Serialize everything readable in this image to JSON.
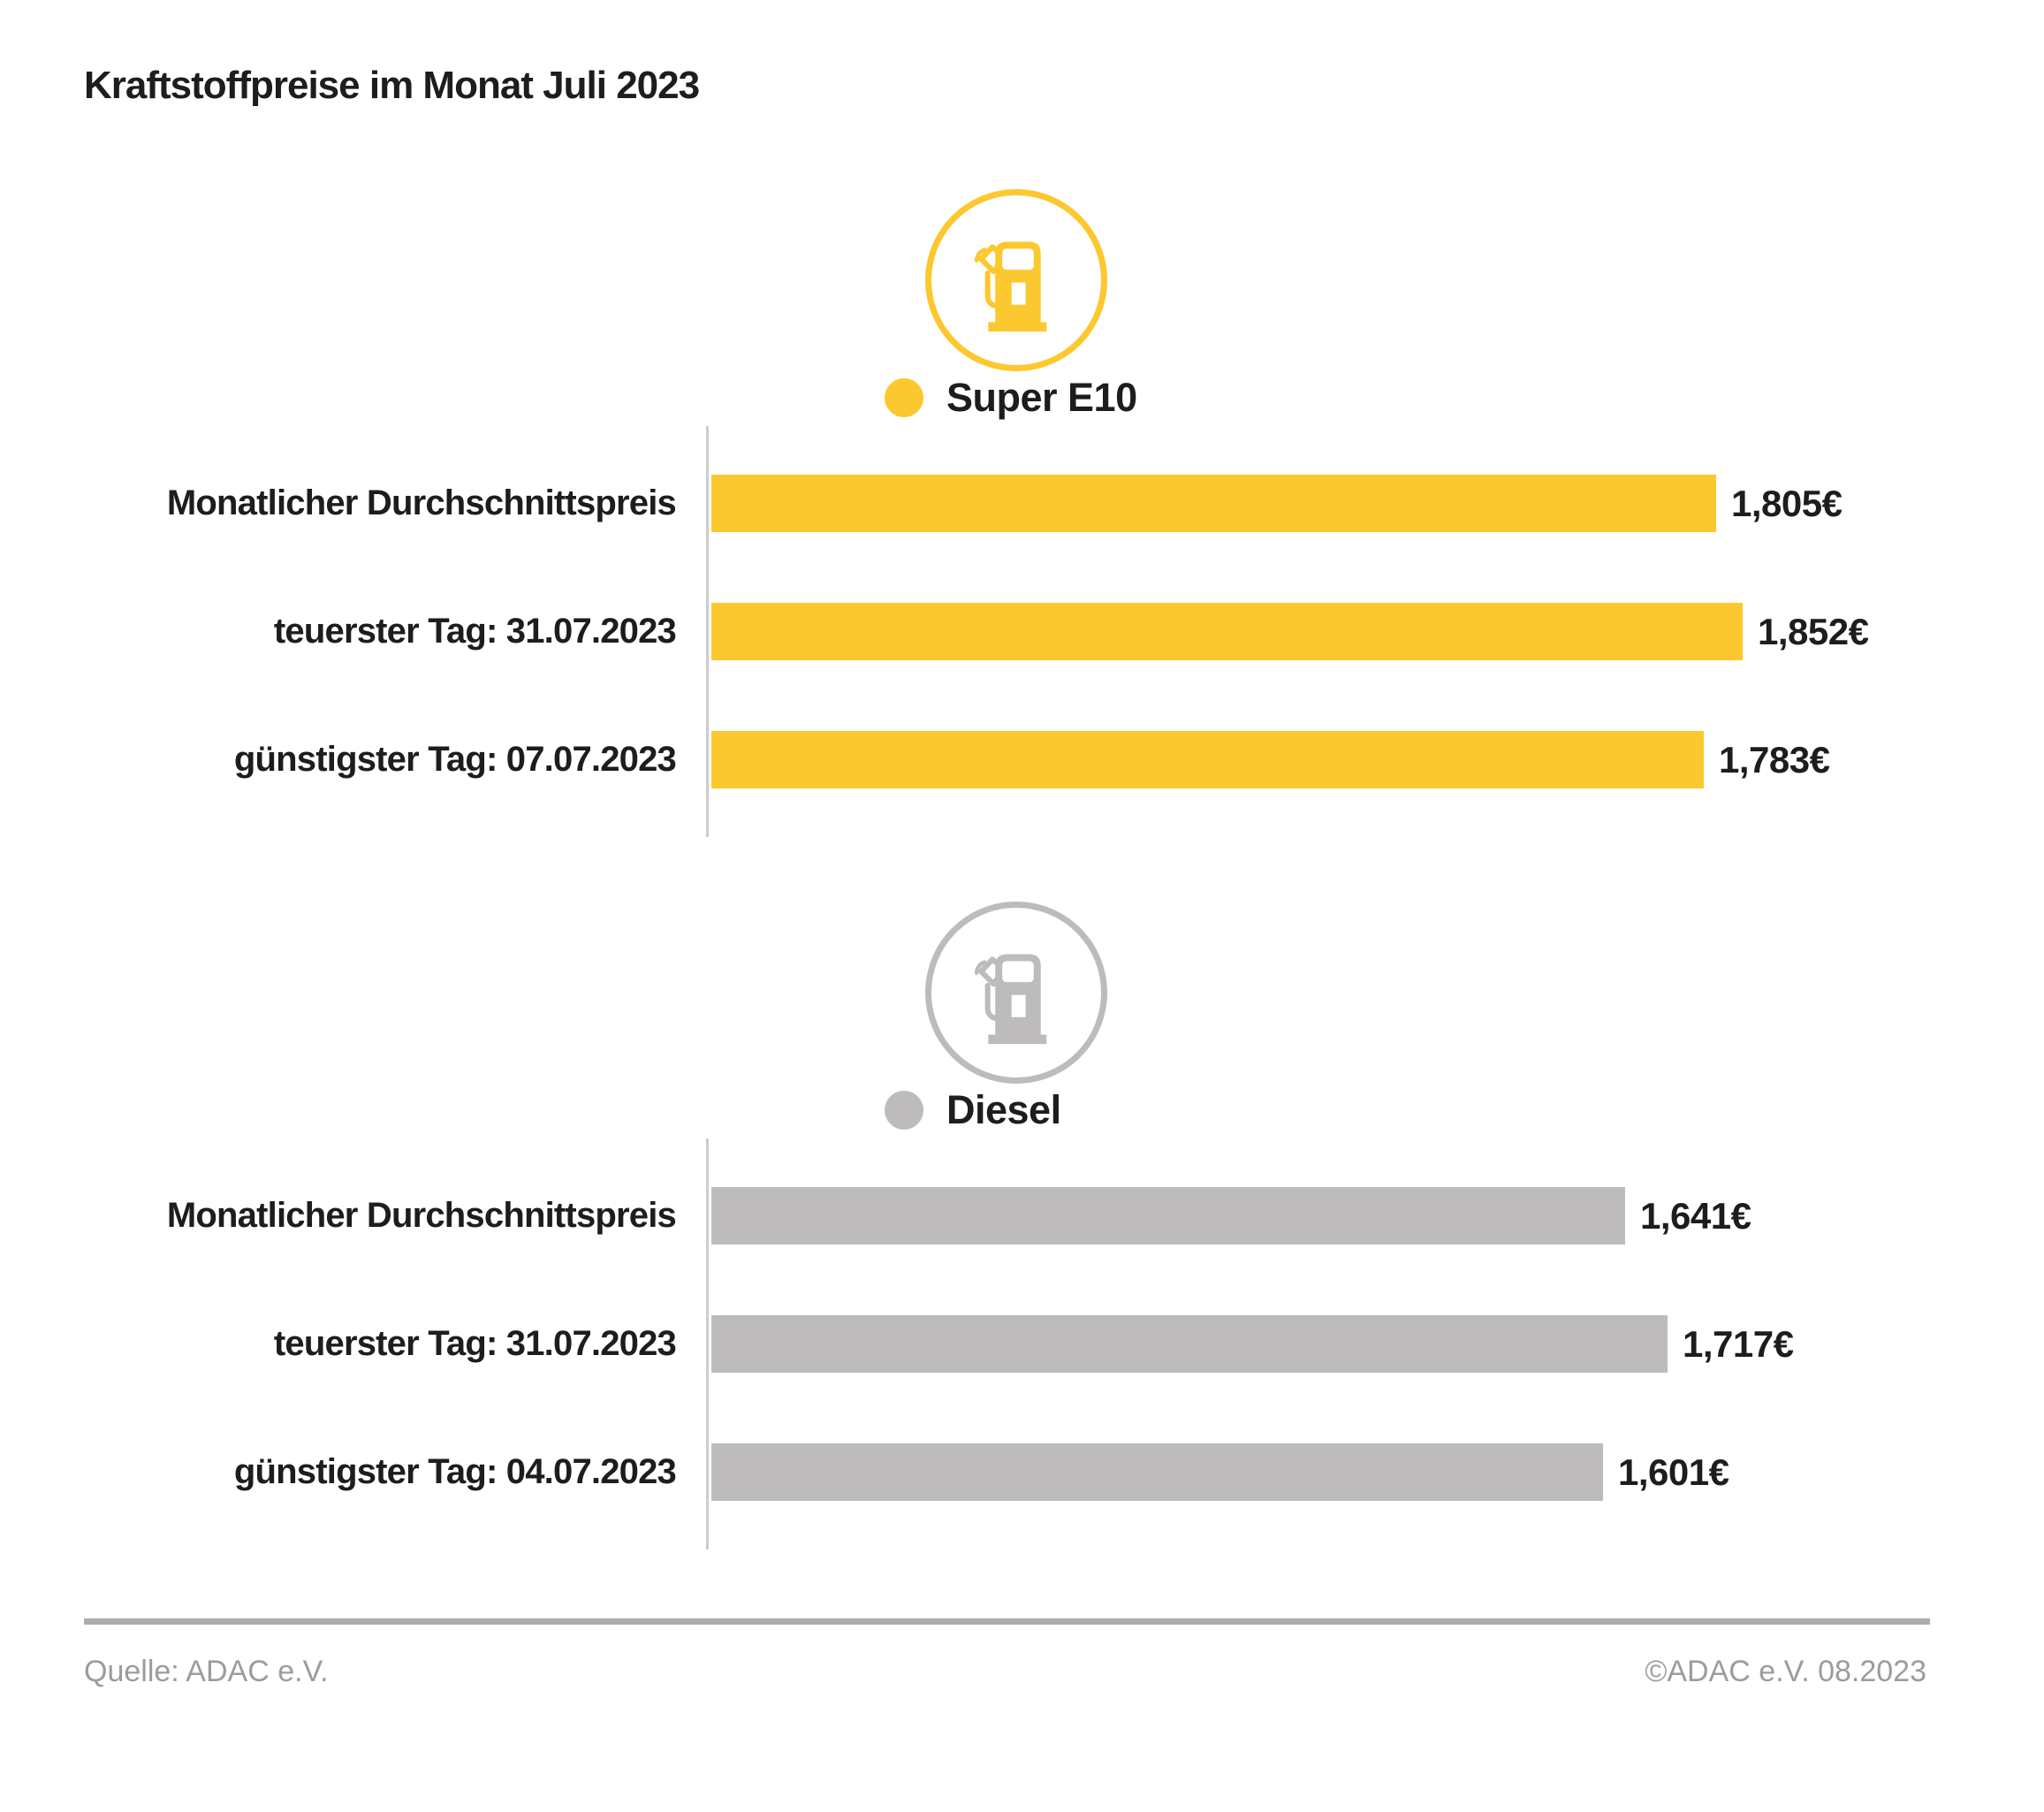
{
  "title": "Kraftstoffpreise im Monat Juli 2023",
  "colors": {
    "super_e10": "#FCC82F",
    "diesel": "#BDBBBB",
    "text": "#1D1D1B",
    "axis_line": "#CDCDCB",
    "footer_rule": "#ACACAC",
    "footer_text": "#9C9C9C"
  },
  "chart_data": [
    {
      "type": "bar",
      "orientation": "horizontal",
      "section": "super-e10",
      "legend": "Super E10",
      "icon": "fuel-pump-icon",
      "bar_color": "#FCC82F",
      "categories": [
        "Monatlicher Durchschnittspreis",
        "teuerster Tag: 31.07.2023",
        "günstigster Tag: 07.07.2023"
      ],
      "values": [
        1.805,
        1.852,
        1.783
      ],
      "value_labels": [
        "1,805€",
        "1,852€",
        "1,783€"
      ],
      "xlim": [
        0,
        1.9
      ],
      "grid": false,
      "legend_position": "top-center"
    },
    {
      "type": "bar",
      "orientation": "horizontal",
      "section": "diesel",
      "legend": "Diesel",
      "icon": "fuel-pump-icon",
      "bar_color": "#BDBBBB",
      "categories": [
        "Monatlicher Durchschnittspreis",
        "teuerster Tag: 31.07.2023",
        "günstigster Tag: 04.07.2023"
      ],
      "values": [
        1.641,
        1.717,
        1.601
      ],
      "value_labels": [
        "1,641€",
        "1,717€",
        "1,601€"
      ],
      "xlim": [
        0,
        1.9
      ],
      "grid": false,
      "legend_position": "top-center"
    }
  ],
  "footer": {
    "source": "Quelle: ADAC e.V.",
    "copyright": "©ADAC e.V. 08.2023"
  }
}
